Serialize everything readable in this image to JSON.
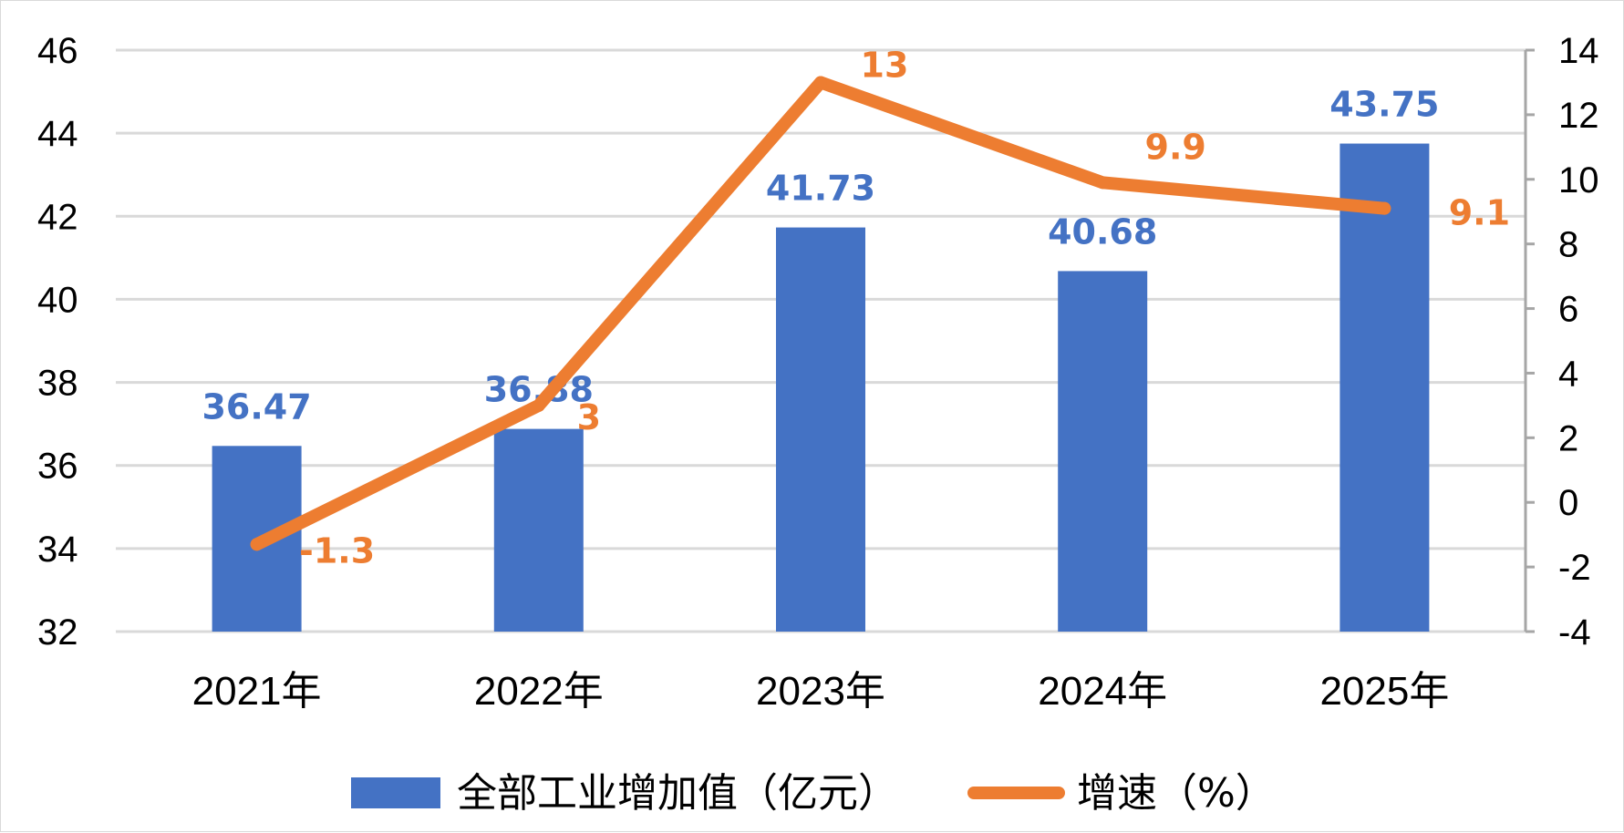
{
  "chart_data": {
    "type": "bar",
    "categories": [
      "2021年",
      "2022年",
      "2023年",
      "2024年",
      "2025年"
    ],
    "series": [
      {
        "name": "全部工业增加值（亿元）",
        "type": "bar",
        "axis": "left",
        "values": [
          36.47,
          36.88,
          41.73,
          40.68,
          43.75
        ],
        "color": "#4472C4"
      },
      {
        "name": "增速（%）",
        "type": "line",
        "axis": "right",
        "values": [
          -1.3,
          3,
          13,
          9.9,
          9.1
        ],
        "color": "#ED7D31"
      }
    ],
    "y_left": {
      "min": 32,
      "max": 46,
      "step": 2
    },
    "y_right": {
      "min": -4,
      "max": 14,
      "step": 2
    },
    "grid": true,
    "legend_position": "bottom"
  }
}
